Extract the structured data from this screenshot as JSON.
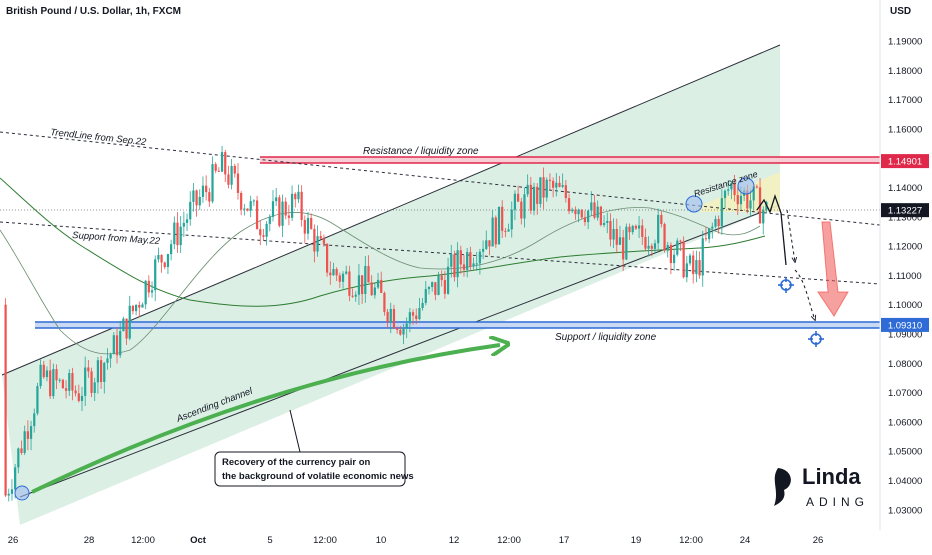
{
  "header": {
    "symbol_title": "British Pound / U.S. Dollar, 1h, FXCM",
    "currency": "USD"
  },
  "axis": {
    "y_ticks": [
      "1.19000",
      "1.18000",
      "1.17000",
      "1.16000",
      "1.15000",
      "1.14000",
      "1.13000",
      "1.12000",
      "1.11000",
      "1.10000",
      "1.09000",
      "1.08000",
      "1.07000",
      "1.06000",
      "1.05000",
      "1.04000",
      "1.03000"
    ],
    "x_ticks": [
      "26",
      "28",
      "12:00",
      "Oct",
      "5",
      "12:00",
      "10",
      "12",
      "12:00",
      "17",
      "19",
      "12:00",
      "24",
      "26"
    ],
    "price_badges": [
      {
        "label": "1.14901",
        "color": "#e0294a"
      },
      {
        "label": "1.13227",
        "color": "#131722"
      },
      {
        "label": "1.09310",
        "color": "#2e6bd6"
      }
    ]
  },
  "annotations": {
    "trendline": "TrendLine from Sep.22",
    "support_may": "Support from May.22",
    "resistance_zone_main": "Resistance / liquidity zone",
    "resistance_zone_small": "Resistance zone",
    "support_zone": "Support / liquidity zone",
    "ascending_channel": "Ascending channel",
    "callout_line1": "Recovery of the currency pair on",
    "callout_line2": "the background of volatile economic news"
  },
  "logo": {
    "line1": "Linda",
    "line2": "ADING"
  },
  "colors": {
    "up": "#26a69a",
    "down": "#ef5350",
    "resistance": "#e0294a",
    "support": "#2e6bd6",
    "channel_fill": "#cfe9dc",
    "ma": "#2e7d32"
  },
  "chart_data": {
    "type": "candlestick",
    "title": "British Pound / U.S. Dollar, 1h, FXCM",
    "ylim": [
      1.025,
      1.195
    ],
    "levels": {
      "resistance": 1.14901,
      "last_price": 1.13227,
      "support": 1.0931
    },
    "close_path": [
      {
        "x": "Sep 26",
        "y": 1.035
      },
      {
        "x": "Sep 27",
        "y": 1.075
      },
      {
        "x": "Sep 28",
        "y": 1.07
      },
      {
        "x": "Sep 29",
        "y": 1.085
      },
      {
        "x": "Sep 30",
        "y": 1.11
      },
      {
        "x": "Oct 3",
        "y": 1.13
      },
      {
        "x": "Oct 5",
        "y": 1.147
      },
      {
        "x": "Oct 6",
        "y": 1.128
      },
      {
        "x": "Oct 7",
        "y": 1.135
      },
      {
        "x": "Oct 10",
        "y": 1.111
      },
      {
        "x": "Oct 11",
        "y": 1.107
      },
      {
        "x": "Oct 12",
        "y": 1.093
      },
      {
        "x": "Oct 13",
        "y": 1.108
      },
      {
        "x": "Oct 14",
        "y": 1.12
      },
      {
        "x": "Oct 17",
        "y": 1.132
      },
      {
        "x": "Oct 18",
        "y": 1.14
      },
      {
        "x": "Oct 19",
        "y": 1.133
      },
      {
        "x": "Oct 20",
        "y": 1.12
      },
      {
        "x": "Oct 21",
        "y": 1.126
      },
      {
        "x": "Oct 23",
        "y": 1.11
      },
      {
        "x": "Oct 24",
        "y": 1.141
      },
      {
        "x": "Oct 25",
        "y": 1.132
      }
    ]
  }
}
